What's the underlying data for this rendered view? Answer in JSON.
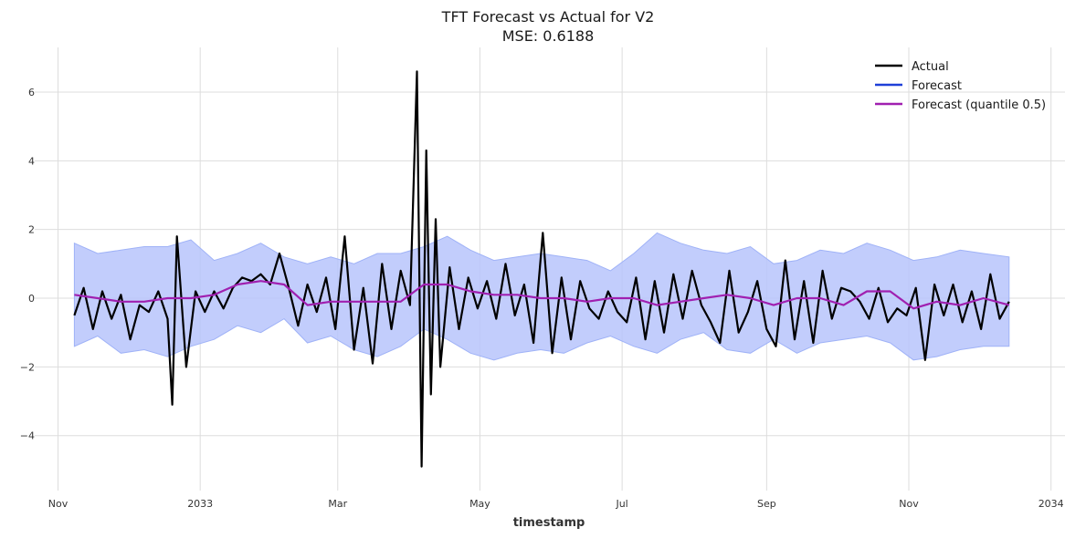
{
  "chart_data": {
    "type": "line",
    "title": "TFT Forecast vs Actual for V2",
    "subtitle": "MSE: 0.6188",
    "xlabel": "timestamp",
    "ylabel": "",
    "ylim": [
      -5.6,
      7.3
    ],
    "xlim": [
      "2032-10-22",
      "2034-01-07"
    ],
    "x_ticks": [
      {
        "date": "2032-11-01",
        "label": "Nov"
      },
      {
        "date": "2033-01-01",
        "label": "2033"
      },
      {
        "date": "2033-03-01",
        "label": "Mar"
      },
      {
        "date": "2033-05-01",
        "label": "May"
      },
      {
        "date": "2033-07-01",
        "label": "Jul"
      },
      {
        "date": "2033-09-01",
        "label": "Sep"
      },
      {
        "date": "2033-11-01",
        "label": "Nov"
      },
      {
        "date": "2034-01-01",
        "label": "2034"
      }
    ],
    "y_ticks": [
      {
        "value": -4,
        "label": "−4"
      },
      {
        "value": -2,
        "label": "−2"
      },
      {
        "value": 0,
        "label": "0"
      },
      {
        "value": 2,
        "label": "2"
      },
      {
        "value": 4,
        "label": "4"
      },
      {
        "value": 6,
        "label": "6"
      }
    ],
    "grid": true,
    "legend_position": "top-right",
    "series": [
      {
        "name": "Actual",
        "color": "#000000",
        "x": [
          "2032-11-08",
          "2032-11-12",
          "2032-11-16",
          "2032-11-20",
          "2032-11-24",
          "2032-11-28",
          "2032-12-02",
          "2032-12-06",
          "2032-12-10",
          "2032-12-14",
          "2032-12-18",
          "2032-12-20",
          "2032-12-22",
          "2032-12-26",
          "2032-12-30",
          "2033-01-03",
          "2033-01-07",
          "2033-01-11",
          "2033-01-15",
          "2033-01-19",
          "2033-01-23",
          "2033-01-27",
          "2033-01-31",
          "2033-02-04",
          "2033-02-08",
          "2033-02-12",
          "2033-02-16",
          "2033-02-20",
          "2033-02-24",
          "2033-02-28",
          "2033-03-04",
          "2033-03-08",
          "2033-03-12",
          "2033-03-16",
          "2033-03-20",
          "2033-03-24",
          "2033-03-28",
          "2033-04-01",
          "2033-04-04",
          "2033-04-06",
          "2033-04-08",
          "2033-04-10",
          "2033-04-12",
          "2033-04-14",
          "2033-04-18",
          "2033-04-22",
          "2033-04-26",
          "2033-04-30",
          "2033-05-04",
          "2033-05-08",
          "2033-05-12",
          "2033-05-16",
          "2033-05-20",
          "2033-05-24",
          "2033-05-28",
          "2033-06-01",
          "2033-06-05",
          "2033-06-09",
          "2033-06-13",
          "2033-06-17",
          "2033-06-21",
          "2033-06-25",
          "2033-06-29",
          "2033-07-03",
          "2033-07-07",
          "2033-07-11",
          "2033-07-15",
          "2033-07-19",
          "2033-07-23",
          "2033-07-27",
          "2033-07-31",
          "2033-08-04",
          "2033-08-08",
          "2033-08-12",
          "2033-08-16",
          "2033-08-20",
          "2033-08-24",
          "2033-08-28",
          "2033-09-01",
          "2033-09-05",
          "2033-09-09",
          "2033-09-13",
          "2033-09-17",
          "2033-09-21",
          "2033-09-25",
          "2033-09-29",
          "2033-10-03",
          "2033-10-07",
          "2033-10-11",
          "2033-10-15",
          "2033-10-19",
          "2033-10-23",
          "2033-10-27",
          "2033-10-31",
          "2033-11-04",
          "2033-11-08",
          "2033-11-12",
          "2033-11-16",
          "2033-11-20",
          "2033-11-24",
          "2033-11-28",
          "2033-12-02",
          "2033-12-06",
          "2033-12-10",
          "2033-12-14"
        ],
        "y": [
          -0.5,
          0.3,
          -0.9,
          0.2,
          -0.6,
          0.1,
          -1.2,
          -0.2,
          -0.4,
          0.2,
          -0.6,
          -3.1,
          1.8,
          -2.0,
          0.2,
          -0.4,
          0.2,
          -0.3,
          0.3,
          0.6,
          0.5,
          0.7,
          0.4,
          1.3,
          0.3,
          -0.8,
          0.4,
          -0.4,
          0.6,
          -0.9,
          1.8,
          -1.5,
          0.3,
          -1.9,
          1.0,
          -0.9,
          0.8,
          -0.2,
          6.6,
          -4.9,
          4.3,
          -2.8,
          2.3,
          -2.0,
          0.9,
          -0.9,
          0.6,
          -0.3,
          0.5,
          -0.6,
          1.0,
          -0.5,
          0.4,
          -1.3,
          1.9,
          -1.6,
          0.6,
          -1.2,
          0.5,
          -0.3,
          -0.6,
          0.2,
          -0.4,
          -0.7,
          0.6,
          -1.2,
          0.5,
          -1.0,
          0.7,
          -0.6,
          0.8,
          -0.2,
          -0.7,
          -1.3,
          0.8,
          -1.0,
          -0.4,
          0.5,
          -0.9,
          -1.4,
          1.1,
          -1.2,
          0.5,
          -1.3,
          0.8,
          -0.6,
          0.3,
          0.2,
          -0.1,
          -0.6,
          0.3,
          -0.7,
          -0.3,
          -0.5,
          0.3,
          -1.8,
          0.4,
          -0.5,
          0.4,
          -0.7,
          0.2,
          -0.9,
          0.7,
          -0.6,
          -0.1
        ]
      },
      {
        "name": "Forecast",
        "color": "#1f3fd8",
        "band_color": "#b7c4fb",
        "band_label": "Forecast",
        "x": [
          "2032-11-08",
          "2032-11-18",
          "2032-11-28",
          "2032-12-08",
          "2032-12-18",
          "2032-12-28",
          "2033-01-07",
          "2033-01-17",
          "2033-01-27",
          "2033-02-06",
          "2033-02-16",
          "2033-02-26",
          "2033-03-08",
          "2033-03-18",
          "2033-03-28",
          "2033-04-07",
          "2033-04-17",
          "2033-04-27",
          "2033-05-07",
          "2033-05-17",
          "2033-05-27",
          "2033-06-06",
          "2033-06-16",
          "2033-06-26",
          "2033-07-06",
          "2033-07-16",
          "2033-07-26",
          "2033-08-05",
          "2033-08-15",
          "2033-08-25",
          "2033-09-04",
          "2033-09-14",
          "2033-09-24",
          "2033-10-04",
          "2033-10-14",
          "2033-10-24",
          "2033-11-03",
          "2033-11-13",
          "2033-11-23",
          "2033-12-03",
          "2033-12-14"
        ],
        "lower": [
          -1.4,
          -1.1,
          -1.6,
          -1.5,
          -1.7,
          -1.4,
          -1.2,
          -0.8,
          -1.0,
          -0.6,
          -1.3,
          -1.1,
          -1.5,
          -1.7,
          -1.4,
          -0.9,
          -1.2,
          -1.6,
          -1.8,
          -1.6,
          -1.5,
          -1.6,
          -1.3,
          -1.1,
          -1.4,
          -1.6,
          -1.2,
          -1.0,
          -1.5,
          -1.6,
          -1.2,
          -1.6,
          -1.3,
          -1.2,
          -1.1,
          -1.3,
          -1.8,
          -1.7,
          -1.5,
          -1.4,
          -1.4
        ],
        "upper": [
          1.6,
          1.3,
          1.4,
          1.5,
          1.5,
          1.7,
          1.1,
          1.3,
          1.6,
          1.2,
          1.0,
          1.2,
          1.0,
          1.3,
          1.3,
          1.5,
          1.8,
          1.4,
          1.1,
          1.2,
          1.3,
          1.2,
          1.1,
          0.8,
          1.3,
          1.9,
          1.6,
          1.4,
          1.3,
          1.5,
          1.0,
          1.1,
          1.4,
          1.3,
          1.6,
          1.4,
          1.1,
          1.2,
          1.4,
          1.3,
          1.2
        ]
      },
      {
        "name": "Forecast (quantile 0.5)",
        "color": "#a020b0",
        "x": [
          "2032-11-08",
          "2032-11-18",
          "2032-11-28",
          "2032-12-08",
          "2032-12-18",
          "2032-12-28",
          "2033-01-07",
          "2033-01-17",
          "2033-01-27",
          "2033-02-06",
          "2033-02-16",
          "2033-02-26",
          "2033-03-08",
          "2033-03-18",
          "2033-03-28",
          "2033-04-07",
          "2033-04-17",
          "2033-04-27",
          "2033-05-07",
          "2033-05-17",
          "2033-05-27",
          "2033-06-06",
          "2033-06-16",
          "2033-06-26",
          "2033-07-06",
          "2033-07-16",
          "2033-07-26",
          "2033-08-05",
          "2033-08-15",
          "2033-08-25",
          "2033-09-04",
          "2033-09-14",
          "2033-09-24",
          "2033-10-04",
          "2033-10-14",
          "2033-10-24",
          "2033-11-03",
          "2033-11-13",
          "2033-11-23",
          "2033-12-03",
          "2033-12-14"
        ],
        "y": [
          0.1,
          0.0,
          -0.1,
          -0.1,
          0.0,
          0.0,
          0.1,
          0.4,
          0.5,
          0.4,
          -0.2,
          -0.1,
          -0.1,
          -0.1,
          -0.1,
          0.4,
          0.4,
          0.2,
          0.1,
          0.1,
          0.0,
          0.0,
          -0.1,
          0.0,
          0.0,
          -0.2,
          -0.1,
          0.0,
          0.1,
          0.0,
          -0.2,
          0.0,
          0.0,
          -0.2,
          0.2,
          0.2,
          -0.3,
          -0.1,
          -0.2,
          0.0,
          -0.2
        ]
      }
    ]
  }
}
